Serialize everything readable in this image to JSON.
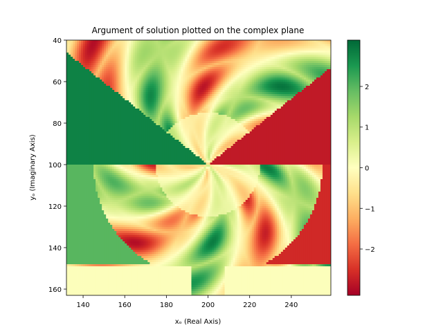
{
  "chart_data": {
    "type": "heatmap",
    "title": "Argument of solution plotted on the complex plane",
    "xlabel": "xₒ (Real Axis)",
    "ylabel": "yₒ (Imaginary Axis)",
    "xlim": [
      132,
      259
    ],
    "ylim": [
      163,
      40
    ],
    "xticks": [
      140,
      160,
      180,
      200,
      220,
      240
    ],
    "yticks": [
      40,
      60,
      80,
      100,
      120,
      140,
      160
    ],
    "colorbar": {
      "colormap": "RdYlGn",
      "range": [
        -3.14,
        3.14
      ],
      "ticks": [
        -2,
        -1,
        0,
        1,
        2
      ],
      "tick_labels": [
        "−2",
        "−1",
        "0",
        "1",
        "2"
      ]
    },
    "center": [
      200,
      100
    ],
    "regions_description_colors": {
      "dark_green": "#006837",
      "green": "#1a9850",
      "light_green": "#a6d96a",
      "pale": "#ffffbf",
      "orange": "#fdae61",
      "red": "#d73027",
      "dark_red": "#a50026"
    }
  }
}
